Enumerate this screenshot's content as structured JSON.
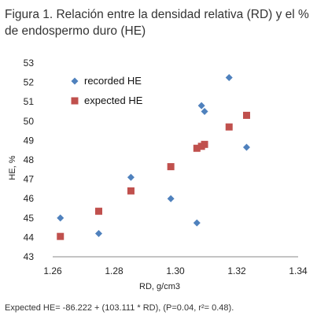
{
  "caption": {
    "title": "Figura 1. Relación entre la densidad relativa (RD) y el % de endospermo duro (HE)",
    "footnote": "Expected HE= -86.222 + (103.111 * RD), (P=0.04, r²= 0.48)."
  },
  "chart_data": {
    "type": "scatter",
    "title": "",
    "xlabel": "RD, g/cm3",
    "ylabel": "HE, %",
    "xlim": [
      1.26,
      1.34
    ],
    "ylim": [
      43,
      53
    ],
    "xticks": [
      "1.26",
      "1.28",
      "1.30",
      "1.32",
      "1.34"
    ],
    "yticks": [
      "43",
      "44",
      "45",
      "46",
      "47",
      "48",
      "49",
      "50",
      "51",
      "52",
      "53"
    ],
    "grid": false,
    "legend_position": "top-left",
    "series": [
      {
        "name": "recorded HE",
        "marker": "diamond",
        "color": "#4f81bd",
        "points": [
          [
            1.2625,
            45.0
          ],
          [
            1.275,
            44.2
          ],
          [
            1.2855,
            47.1
          ],
          [
            1.2985,
            46.0
          ],
          [
            1.307,
            44.75
          ],
          [
            1.3085,
            50.8
          ],
          [
            1.3095,
            50.5
          ],
          [
            1.3175,
            52.25
          ],
          [
            1.3232,
            48.65
          ]
        ]
      },
      {
        "name": "expected HE",
        "marker": "square",
        "color": "#c0504d",
        "points": [
          [
            1.2625,
            44.05
          ],
          [
            1.275,
            45.35
          ],
          [
            1.2855,
            46.4
          ],
          [
            1.2985,
            47.65
          ],
          [
            1.307,
            48.6
          ],
          [
            1.3085,
            48.7
          ],
          [
            1.3095,
            48.8
          ],
          [
            1.3175,
            49.7
          ],
          [
            1.3232,
            50.3
          ]
        ]
      }
    ]
  }
}
